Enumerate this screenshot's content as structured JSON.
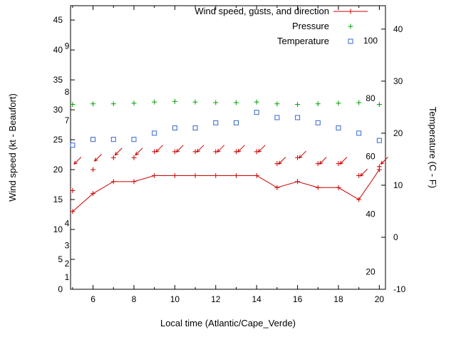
{
  "chart_data": {
    "type": "line",
    "title": "",
    "xlabel": "Local time (Atlantic/Cape_Verde)",
    "ylabel_left": "Wind speed (kt - Beaufort)",
    "ylabel_right": "Temperature (C - F)",
    "x_range": [
      4.9,
      20.3
    ],
    "x_ticks": [
      6,
      8,
      10,
      12,
      14,
      16,
      18,
      20
    ],
    "x_minor_ticks": [
      5,
      7,
      9,
      11,
      13,
      15,
      17,
      19
    ],
    "y1_range": [
      0,
      47.4
    ],
    "y1_ticks": [
      0,
      5,
      10,
      15,
      20,
      25,
      30,
      35,
      40,
      45
    ],
    "y2_range": [
      -10,
      44.5
    ],
    "y2_ticks": [
      -10,
      0,
      10,
      20,
      30,
      40
    ],
    "grid": false,
    "legend_position": "top-right-inside",
    "legend": [
      {
        "label": "Wind speed, gusts, and direction",
        "marker": "line-plus",
        "color": "#cc0000"
      },
      {
        "label": "Pressure",
        "marker": "plus",
        "color": "#00a000"
      },
      {
        "label": "Temperature",
        "marker": "open-square",
        "color": "#3366cc"
      }
    ],
    "beaufort_labels": [
      {
        "label": "1",
        "kt": 2
      },
      {
        "label": "2",
        "kt": 4.3
      },
      {
        "label": "3",
        "kt": 7.3
      },
      {
        "label": "4",
        "kt": 11
      },
      {
        "label": "7",
        "kt": 28.2
      },
      {
        "label": "8",
        "kt": 33
      },
      {
        "label": "9",
        "kt": 40.7
      }
    ],
    "fahrenheit_labels": [
      {
        "label": "20",
        "f": 20
      },
      {
        "label": "40",
        "f": 40
      },
      {
        "label": "60",
        "f": 60
      },
      {
        "label": "80",
        "f": 80
      },
      {
        "label": "100",
        "f": 100
      }
    ],
    "x_hours": [
      5,
      6,
      7,
      8,
      9,
      10,
      11,
      12,
      13,
      14,
      15,
      16,
      17,
      18,
      19,
      20
    ],
    "series": {
      "wind_speed_kt": [
        13,
        16,
        18,
        18,
        19,
        19,
        19,
        19,
        19,
        19,
        17,
        18,
        17,
        17,
        15,
        20
      ],
      "wind_gust_kt": [
        16.5,
        20,
        22,
        22,
        23,
        23,
        23,
        23,
        23,
        23,
        21,
        22,
        21,
        21,
        19,
        20.5
      ],
      "wind_dir_arrow_kt": [
        21.5,
        22,
        23,
        23,
        23.5,
        23.5,
        23.5,
        23.5,
        23.5,
        23.5,
        21.5,
        22.5,
        21.5,
        21.5,
        19.5,
        21.5
      ],
      "wind_direction_note": "all arrows point toward lower-left (wind from NE)",
      "pressure_plot_kt": [
        30.9,
        31,
        31,
        31.1,
        31.3,
        31.4,
        31.3,
        31.2,
        31.2,
        31.3,
        31,
        30.9,
        31,
        31.1,
        31.2,
        30.9
      ],
      "pressure_note": "pressure trace has no numeric scale shown",
      "temperature_c": [
        17.7,
        18.8,
        18.8,
        18.8,
        20,
        21,
        21,
        22,
        22,
        24,
        23,
        23,
        22,
        21,
        20,
        18.6
      ]
    },
    "colors": {
      "wind": "#cc0000",
      "pressure": "#00a000",
      "temperature": "#3366cc",
      "axis": "#000000",
      "background": "#ffffff"
    }
  }
}
